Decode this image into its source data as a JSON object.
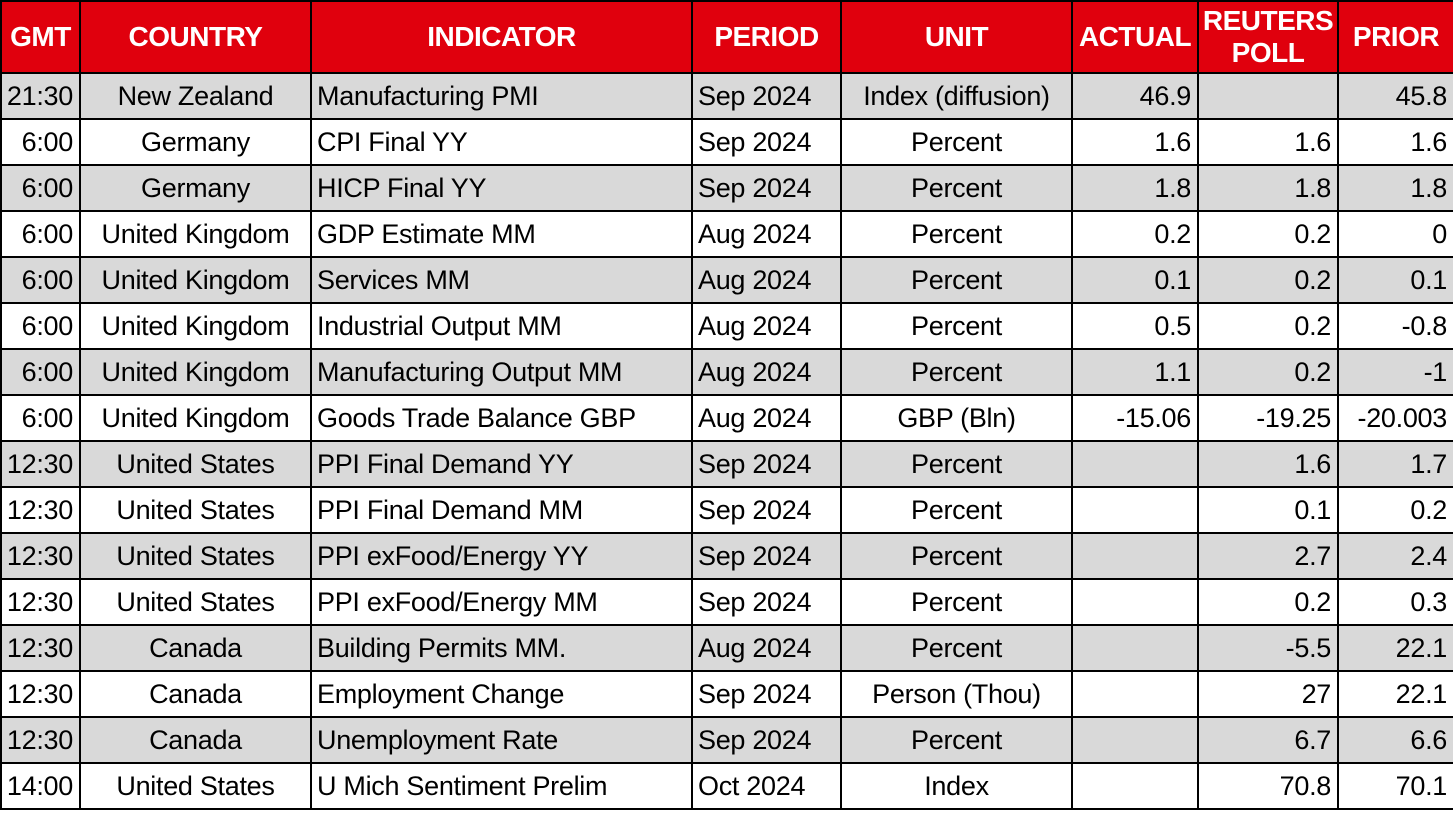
{
  "table": {
    "name": "economic-calendar",
    "columns": [
      {
        "key": "gmt",
        "label": "GMT",
        "align": "right"
      },
      {
        "key": "country",
        "label": "COUNTRY",
        "align": "center"
      },
      {
        "key": "indicator",
        "label": "INDICATOR",
        "align": "left"
      },
      {
        "key": "period",
        "label": "PERIOD",
        "align": "left"
      },
      {
        "key": "unit",
        "label": "UNIT",
        "align": "center"
      },
      {
        "key": "actual",
        "label": "ACTUAL",
        "align": "right"
      },
      {
        "key": "reuters_poll",
        "label": "REUTERS POLL",
        "align": "right"
      },
      {
        "key": "prior",
        "label": "PRIOR",
        "align": "right"
      }
    ],
    "rows": [
      {
        "gmt": "21:30",
        "country": "New Zealand",
        "indicator": "Manufacturing PMI",
        "period": "Sep 2024",
        "unit": "Index (diffusion)",
        "actual": "46.9",
        "reuters_poll": "",
        "prior": "45.8"
      },
      {
        "gmt": "6:00",
        "country": "Germany",
        "indicator": "CPI Final YY",
        "period": "Sep 2024",
        "unit": "Percent",
        "actual": "1.6",
        "reuters_poll": "1.6",
        "prior": "1.6"
      },
      {
        "gmt": "6:00",
        "country": "Germany",
        "indicator": "HICP Final YY",
        "period": "Sep 2024",
        "unit": "Percent",
        "actual": "1.8",
        "reuters_poll": "1.8",
        "prior": "1.8"
      },
      {
        "gmt": "6:00",
        "country": "United Kingdom",
        "indicator": "GDP Estimate MM",
        "period": "Aug 2024",
        "unit": "Percent",
        "actual": "0.2",
        "reuters_poll": "0.2",
        "prior": "0"
      },
      {
        "gmt": "6:00",
        "country": "United Kingdom",
        "indicator": "Services MM",
        "period": "Aug 2024",
        "unit": "Percent",
        "actual": "0.1",
        "reuters_poll": "0.2",
        "prior": "0.1"
      },
      {
        "gmt": "6:00",
        "country": "United Kingdom",
        "indicator": "Industrial Output MM",
        "period": "Aug 2024",
        "unit": "Percent",
        "actual": "0.5",
        "reuters_poll": "0.2",
        "prior": "-0.8"
      },
      {
        "gmt": "6:00",
        "country": "United Kingdom",
        "indicator": "Manufacturing Output MM",
        "period": "Aug 2024",
        "unit": "Percent",
        "actual": "1.1",
        "reuters_poll": "0.2",
        "prior": "-1"
      },
      {
        "gmt": "6:00",
        "country": "United Kingdom",
        "indicator": "Goods Trade Balance GBP",
        "period": "Aug 2024",
        "unit": "GBP (Bln)",
        "actual": "-15.06",
        "reuters_poll": "-19.25",
        "prior": "-20.003"
      },
      {
        "gmt": "12:30",
        "country": "United States",
        "indicator": "PPI Final Demand YY",
        "period": "Sep 2024",
        "unit": "Percent",
        "actual": "",
        "reuters_poll": "1.6",
        "prior": "1.7"
      },
      {
        "gmt": "12:30",
        "country": "United States",
        "indicator": "PPI Final Demand MM",
        "period": "Sep 2024",
        "unit": "Percent",
        "actual": "",
        "reuters_poll": "0.1",
        "prior": "0.2"
      },
      {
        "gmt": "12:30",
        "country": "United States",
        "indicator": "PPI exFood/Energy YY",
        "period": "Sep 2024",
        "unit": "Percent",
        "actual": "",
        "reuters_poll": "2.7",
        "prior": "2.4"
      },
      {
        "gmt": "12:30",
        "country": "United States",
        "indicator": "PPI exFood/Energy MM",
        "period": "Sep 2024",
        "unit": "Percent",
        "actual": "",
        "reuters_poll": "0.2",
        "prior": "0.3"
      },
      {
        "gmt": "12:30",
        "country": "Canada",
        "indicator": "Building Permits MM.",
        "period": "Aug 2024",
        "unit": "Percent",
        "actual": "",
        "reuters_poll": "-5.5",
        "prior": "22.1"
      },
      {
        "gmt": "12:30",
        "country": "Canada",
        "indicator": "Employment Change",
        "period": "Sep 2024",
        "unit": "Person (Thou)",
        "actual": "",
        "reuters_poll": "27",
        "prior": "22.1"
      },
      {
        "gmt": "12:30",
        "country": "Canada",
        "indicator": "Unemployment Rate",
        "period": "Sep 2024",
        "unit": "Percent",
        "actual": "",
        "reuters_poll": "6.7",
        "prior": "6.6"
      },
      {
        "gmt": "14:00",
        "country": "United States",
        "indicator": "U Mich Sentiment Prelim",
        "period": "Oct 2024",
        "unit": "Index",
        "actual": "",
        "reuters_poll": "70.8",
        "prior": "70.1"
      }
    ],
    "colors": {
      "header_bg": "#e0000d",
      "header_text": "#ffffff",
      "row_bg": "#ffffff",
      "row_alt_bg": "#d9d9d9",
      "border": "#000000",
      "body_text": "#000000"
    }
  }
}
